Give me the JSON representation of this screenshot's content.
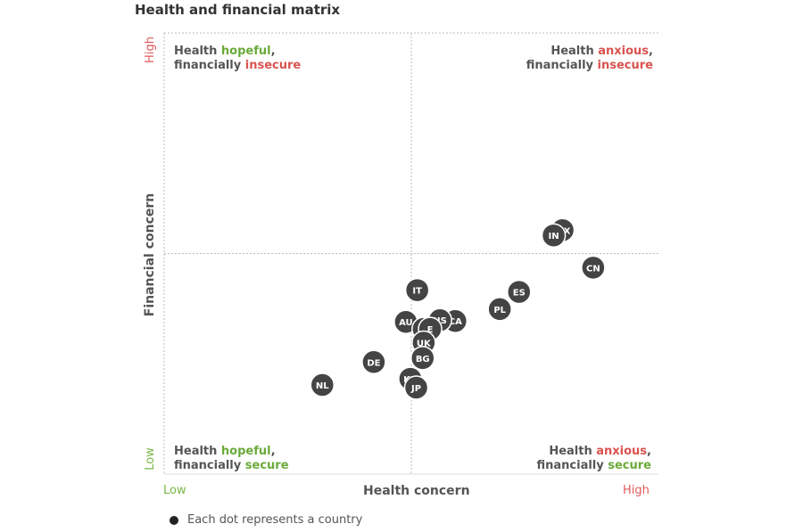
{
  "title": "Health and financial matrix",
  "colors": {
    "dot": "#444444",
    "dot_stroke": "#ffffff",
    "hopeful": "#6aaa3a",
    "secure": "#6aaa3a",
    "anxious": "#d9534f",
    "insecure": "#d9534f",
    "high": "#e05a5a",
    "low": "#7ab648",
    "grid": "#bbbbbb",
    "label": "#555555"
  },
  "quadrants": {
    "top_left": {
      "line1_pre": "Health ",
      "line1_hl": "hopeful",
      "line1_post": ",",
      "line2_pre": "financially ",
      "line2_hl": "insecure"
    },
    "top_right": {
      "line1_pre": "Health ",
      "line1_hl": "anxious",
      "line1_post": ",",
      "line2_pre": "financially ",
      "line2_hl": "insecure"
    },
    "bottom_left": {
      "line1_pre": "Health ",
      "line1_hl": "hopeful",
      "line1_post": ",",
      "line2_pre": "financially ",
      "line2_hl": "secure"
    },
    "bottom_right": {
      "line1_pre": "Health ",
      "line1_hl": "anxious",
      "line1_post": ",",
      "line2_pre": "financially ",
      "line2_hl": "secure"
    }
  },
  "legend": {
    "text": "Each dot represents a country"
  },
  "chart_data": {
    "type": "scatter",
    "title": "Health and financial matrix",
    "xlabel": "Health concern",
    "ylabel": "Financial concern",
    "x_ticks": {
      "low": "Low",
      "high": "High"
    },
    "y_ticks": {
      "low": "Low",
      "high": "High"
    },
    "xlim": [
      0,
      100
    ],
    "ylim": [
      0,
      100
    ],
    "grid": "dotted quadrant lines at midpoint",
    "points": [
      {
        "label": "MX",
        "x": 80.6,
        "y": 55.3
      },
      {
        "label": "IN",
        "x": 78.8,
        "y": 54.1
      },
      {
        "label": "CN",
        "x": 86.8,
        "y": 46.8
      },
      {
        "label": "ES",
        "x": 71.8,
        "y": 41.3
      },
      {
        "label": "PL",
        "x": 67.9,
        "y": 37.4
      },
      {
        "label": "IT",
        "x": 51.2,
        "y": 41.7
      },
      {
        "label": "CA",
        "x": 58.9,
        "y": 34.7
      },
      {
        "label": "US",
        "x": 55.8,
        "y": 34.9
      },
      {
        "label": "AU",
        "x": 48.9,
        "y": 34.5
      },
      {
        "label": "FR",
        "x": 52.5,
        "y": 32.9
      },
      {
        "label": "E",
        "x": 53.8,
        "y": 32.9
      },
      {
        "label": "UK",
        "x": 52.5,
        "y": 29.8
      },
      {
        "label": "BG",
        "x": 52.3,
        "y": 26.3
      },
      {
        "label": "DE",
        "x": 42.4,
        "y": 25.4
      },
      {
        "label": "KR",
        "x": 49.8,
        "y": 21.6
      },
      {
        "label": "JP",
        "x": 51.0,
        "y": 19.6
      },
      {
        "label": "NL",
        "x": 32.0,
        "y": 20.2
      }
    ]
  }
}
